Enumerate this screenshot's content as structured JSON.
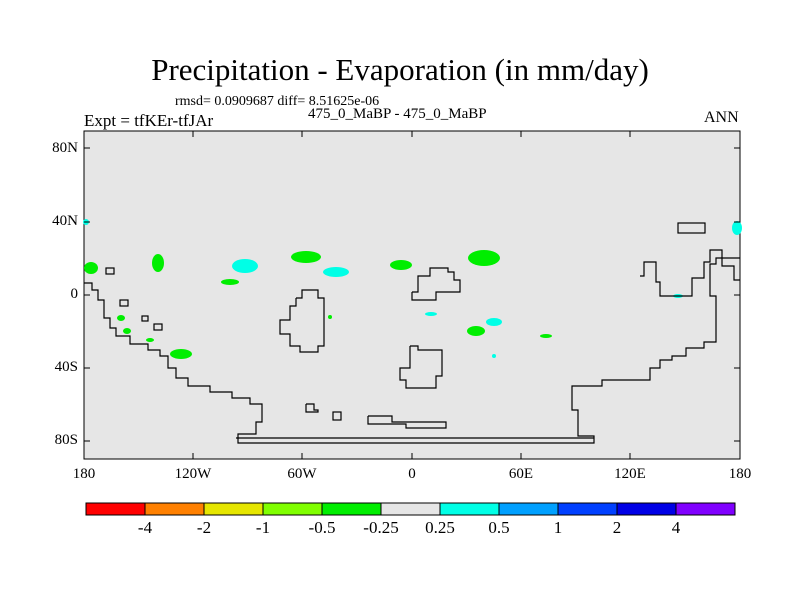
{
  "title": "Precipitation - Evaporation (in mm/day)",
  "stats": "rmsd= 0.0909687 diff= 8.51625e-06",
  "experiment": "Expt = tfKEr-tfJAr",
  "comparison": "475_0_MaBP - 475_0_MaBP",
  "season": "ANN",
  "axes": {
    "lat_labels": [
      "80N",
      "40N",
      "0",
      "40S",
      "80S"
    ],
    "lon_labels": [
      "180",
      "120W",
      "60W",
      "0",
      "60E",
      "120E",
      "180"
    ]
  },
  "map_background": "#e6e6e6",
  "colorbar": {
    "colors": [
      "#ff0000",
      "#ff8000",
      "#e6e600",
      "#80ff00",
      "#00ee00",
      "#e6e6e6",
      "#00ffe6",
      "#00a0ff",
      "#0040ff",
      "#0000e6",
      "#8000ff"
    ],
    "labels": [
      "-4",
      "-2",
      "-1",
      "-0.5",
      "-0.25",
      "0.25",
      "0.5",
      "1",
      "2",
      "4"
    ]
  }
}
